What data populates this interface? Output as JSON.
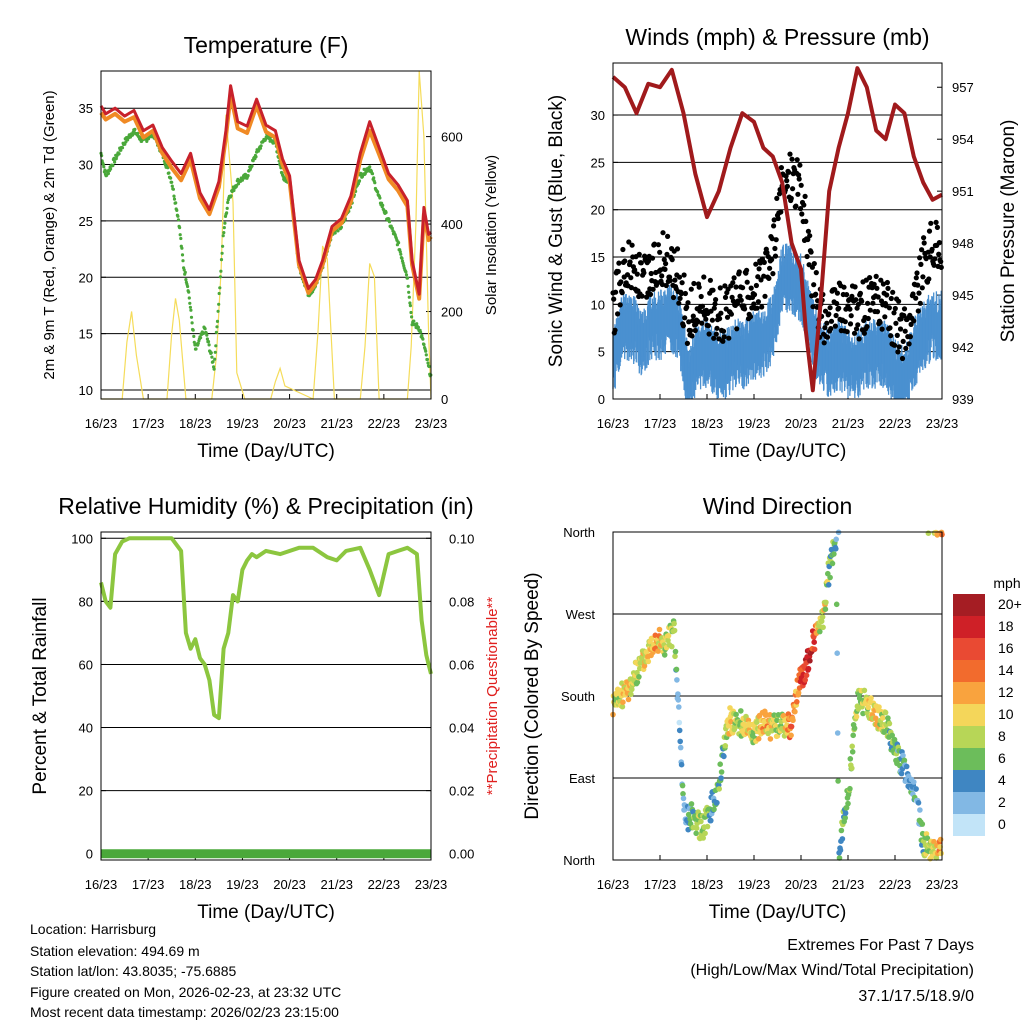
{
  "chart_data": [
    {
      "type": "line",
      "title": "Temperature (F)",
      "xlabel": "Time (Day/UTC)",
      "ylabel": "2m & 9m T (Red, Orange) & 2m Td (Green)",
      "y2label": "Solar Insolation (Yellow)",
      "x_ticks": [
        "16/23",
        "17/23",
        "18/23",
        "19/23",
        "20/23",
        "21/23",
        "22/23",
        "23/23"
      ],
      "ylim": [
        9.2,
        38.3
      ],
      "y_ticks": [
        10,
        15,
        20,
        25,
        30,
        35
      ],
      "y2lim": [
        0,
        750
      ],
      "y2_ticks": [
        0,
        200,
        400,
        600
      ],
      "x_range_days": [
        0,
        7
      ],
      "series": [
        {
          "name": "2m T",
          "color": "#c8212b",
          "x": [
            0,
            0.1,
            0.3,
            0.5,
            0.7,
            0.9,
            1.1,
            1.3,
            1.5,
            1.7,
            1.9,
            2.1,
            2.3,
            2.5,
            2.65,
            2.75,
            2.9,
            3.1,
            3.3,
            3.5,
            3.7,
            3.85,
            4.0,
            4.2,
            4.4,
            4.55,
            4.7,
            4.9,
            5.1,
            5.3,
            5.5,
            5.7,
            5.9,
            6.1,
            6.3,
            6.5,
            6.6,
            6.75,
            6.85,
            6.95,
            7.0
          ],
          "values": [
            35.2,
            34.5,
            35.0,
            34.3,
            34.8,
            33.0,
            33.5,
            31.5,
            30.3,
            29.2,
            31.0,
            27.5,
            26.0,
            28.5,
            33.0,
            37.0,
            33.8,
            33.4,
            35.8,
            33.5,
            33.0,
            30.5,
            29.0,
            21.5,
            19.0,
            19.8,
            21.5,
            24.5,
            25.2,
            27.2,
            31.0,
            33.8,
            31.5,
            29.2,
            28.2,
            26.8,
            21.5,
            18.5,
            26.2,
            23.8,
            24.0
          ]
        },
        {
          "name": "9m T",
          "color": "#f08a24",
          "x": [
            0,
            0.1,
            0.3,
            0.5,
            0.7,
            0.9,
            1.1,
            1.3,
            1.5,
            1.7,
            1.9,
            2.1,
            2.3,
            2.5,
            2.65,
            2.75,
            2.9,
            3.1,
            3.3,
            3.5,
            3.7,
            3.85,
            4.0,
            4.2,
            4.4,
            4.55,
            4.7,
            4.9,
            5.1,
            5.3,
            5.5,
            5.7,
            5.9,
            6.1,
            6.3,
            6.5,
            6.6,
            6.75,
            6.85,
            6.95,
            7.0
          ],
          "values": [
            34.6,
            34.0,
            34.5,
            33.8,
            34.2,
            32.4,
            33.0,
            31.0,
            29.7,
            28.6,
            30.4,
            27.0,
            25.6,
            28.0,
            32.4,
            36.2,
            33.2,
            32.8,
            35.2,
            32.9,
            32.4,
            30.0,
            28.5,
            21.1,
            18.6,
            19.4,
            21.1,
            24.1,
            24.8,
            26.7,
            30.4,
            33.0,
            30.9,
            28.7,
            27.7,
            26.3,
            21.1,
            18.1,
            25.6,
            23.3,
            23.6
          ]
        },
        {
          "name": "2m Td",
          "color": "#4aa83a",
          "x": [
            0,
            0.1,
            0.3,
            0.5,
            0.7,
            0.9,
            1.1,
            1.3,
            1.5,
            1.65,
            1.75,
            1.85,
            2.0,
            2.2,
            2.4,
            2.5,
            2.6,
            2.7,
            2.9,
            3.1,
            3.3,
            3.5,
            3.7,
            3.85,
            4.0,
            4.2,
            4.4,
            4.55,
            4.7,
            4.9,
            5.1,
            5.3,
            5.5,
            5.7,
            5.9,
            6.1,
            6.3,
            6.5,
            6.6,
            6.75,
            6.85,
            6.95,
            7.0
          ],
          "values": [
            31.0,
            29.0,
            30.5,
            32.0,
            33.0,
            32.0,
            32.8,
            31.0,
            28.5,
            25.0,
            21.0,
            19.0,
            13.5,
            15.5,
            12.0,
            18.0,
            24.0,
            27.0,
            28.5,
            29.0,
            31.0,
            32.5,
            32.0,
            29.0,
            28.5,
            21.0,
            18.5,
            19.2,
            21.0,
            24.0,
            24.5,
            26.5,
            29.0,
            29.8,
            27.0,
            25.0,
            23.0,
            20.0,
            16.0,
            15.5,
            14.0,
            12.0,
            11.2
          ]
        },
        {
          "name": "Solar Insolation",
          "color": "#f5dc5a",
          "axis": "y2",
          "x": [
            0,
            0.45,
            0.55,
            0.65,
            0.75,
            0.9,
            1.4,
            1.5,
            1.58,
            1.66,
            1.8,
            2.35,
            2.45,
            2.55,
            2.65,
            2.8,
            2.88,
            3.05,
            3.6,
            3.7,
            3.8,
            3.9,
            4.5,
            4.6,
            4.7,
            4.8,
            4.95,
            5.5,
            5.6,
            5.7,
            5.8,
            5.9,
            6.5,
            6.58,
            6.68,
            6.75,
            6.85,
            6.95,
            7.0
          ],
          "values": [
            0,
            0,
            130,
            200,
            100,
            0,
            0,
            150,
            230,
            180,
            0,
            0,
            100,
            300,
            650,
            450,
            60,
            0,
            0,
            40,
            70,
            30,
            0,
            150,
            350,
            320,
            0,
            0,
            120,
            310,
            280,
            0,
            0,
            120,
            400,
            750,
            600,
            150,
            0
          ]
        }
      ]
    },
    {
      "type": "scatter",
      "title": "Winds (mph) & Pressure (mb)",
      "xlabel": "Time (Day/UTC)",
      "ylabel": "Sonic Wind & Gust (Blue, Black)",
      "y2label": "Station Pressure (Maroon)",
      "x_ticks": [
        "16/23",
        "17/23",
        "18/23",
        "19/23",
        "20/23",
        "21/23",
        "22/23",
        "23/23"
      ],
      "ylim": [
        0,
        35.5
      ],
      "y_ticks": [
        0,
        5,
        10,
        15,
        20,
        25,
        30
      ],
      "y2lim": [
        939,
        958.4
      ],
      "y2_ticks": [
        939,
        942,
        945,
        948,
        951,
        954,
        957
      ],
      "x_range_days": [
        0,
        7
      ],
      "series": [
        {
          "name": "Sonic Wind",
          "color": "#4a90d0",
          "x": [
            0,
            0.2,
            0.4,
            0.6,
            0.8,
            1.0,
            1.2,
            1.4,
            1.6,
            1.8,
            2.0,
            2.2,
            2.4,
            2.6,
            2.8,
            3.0,
            3.2,
            3.4,
            3.6,
            3.8,
            4.0,
            4.2,
            4.4,
            4.6,
            4.8,
            5.0,
            5.2,
            5.4,
            5.6,
            5.8,
            6.0,
            6.2,
            6.4,
            6.6,
            6.8,
            7.0
          ],
          "values": [
            5,
            9,
            9,
            7,
            9,
            9,
            10,
            9,
            3,
            6,
            6,
            5,
            5,
            6,
            6,
            7,
            7,
            9,
            14,
            14,
            13,
            9,
            6,
            5,
            6,
            5,
            5,
            6,
            6,
            6,
            4,
            3,
            6,
            8,
            9,
            9
          ]
        },
        {
          "name": "Gust",
          "color": "#000000",
          "x": [
            0,
            0.2,
            0.4,
            0.6,
            0.8,
            1.0,
            1.2,
            1.4,
            1.6,
            1.8,
            2.0,
            2.2,
            2.4,
            2.6,
            2.8,
            3.0,
            3.2,
            3.4,
            3.6,
            3.8,
            4.0,
            4.2,
            4.4,
            4.6,
            4.8,
            5.0,
            5.2,
            5.4,
            5.6,
            5.8,
            6.0,
            6.2,
            6.4,
            6.6,
            6.8,
            7.0
          ],
          "values": [
            9,
            14,
            14,
            12,
            13,
            15,
            14,
            13,
            8,
            10,
            10,
            9,
            9,
            10,
            11,
            12,
            12,
            16,
            22,
            24,
            22,
            14,
            9,
            8,
            10,
            9,
            9,
            10,
            10,
            10,
            8,
            7,
            10,
            14,
            16,
            16
          ]
        },
        {
          "name": "Station Pressure",
          "color": "#a01a1c",
          "axis": "y2",
          "x": [
            0,
            0.25,
            0.5,
            0.75,
            1.0,
            1.25,
            1.5,
            1.75,
            2.0,
            2.25,
            2.5,
            2.75,
            3.0,
            3.2,
            3.4,
            3.6,
            3.8,
            4.0,
            4.1,
            4.25,
            4.4,
            4.6,
            4.8,
            5.0,
            5.2,
            5.4,
            5.6,
            5.8,
            6.0,
            6.2,
            6.4,
            6.6,
            6.8,
            7.0
          ],
          "values": [
            957.6,
            957.0,
            955.5,
            957.2,
            957.0,
            958.0,
            955.5,
            952.0,
            949.5,
            951.0,
            953.5,
            955.5,
            955.0,
            953.5,
            953.0,
            951.5,
            948.0,
            946.5,
            943.0,
            939.5,
            944.0,
            951.0,
            953.5,
            955.5,
            958.1,
            957.0,
            954.5,
            954.0,
            956.0,
            955.5,
            953.0,
            951.5,
            950.5,
            950.8
          ]
        }
      ]
    },
    {
      "type": "line",
      "title": "Relative Humidity (%) & Precipitation (in)",
      "xlabel": "Time (Day/UTC)",
      "ylabel": "Percent & Total Rainfall",
      "y2label": "**Precipitation Questionable**",
      "x_ticks": [
        "16/23",
        "17/23",
        "18/23",
        "19/23",
        "20/23",
        "21/23",
        "22/23",
        "23/23"
      ],
      "ylim": [
        -2,
        102
      ],
      "y_ticks": [
        0,
        20,
        40,
        60,
        80,
        100
      ],
      "y2lim": [
        0,
        0.1
      ],
      "y2_ticks": [
        "0.00",
        "0.02",
        "0.04",
        "0.06",
        "0.08",
        "0.10"
      ],
      "x_range_days": [
        0,
        7
      ],
      "series": [
        {
          "name": "Relative Humidity",
          "color": "#8cc63f",
          "x": [
            0,
            0.1,
            0.2,
            0.3,
            0.45,
            0.6,
            0.8,
            1.0,
            1.2,
            1.5,
            1.7,
            1.8,
            1.9,
            2.0,
            2.1,
            2.2,
            2.3,
            2.4,
            2.5,
            2.6,
            2.7,
            2.8,
            2.9,
            3.0,
            3.1,
            3.2,
            3.3,
            3.5,
            3.8,
            4.2,
            4.5,
            4.8,
            5.0,
            5.2,
            5.5,
            5.7,
            5.9,
            6.1,
            6.3,
            6.5,
            6.7,
            6.8,
            6.9,
            6.95,
            7.0
          ],
          "values": [
            86,
            80,
            78,
            95,
            99,
            100,
            100,
            100,
            100,
            100,
            96,
            70,
            65,
            68,
            62,
            60,
            55,
            44,
            43,
            65,
            70,
            82,
            80,
            90,
            93,
            95,
            94,
            96,
            95,
            97,
            97,
            94,
            93,
            96,
            97,
            90,
            82,
            95,
            96,
            97,
            95,
            74,
            63,
            60,
            57
          ]
        },
        {
          "name": "Total Precipitation",
          "color": "#4aa83a",
          "axis": "y2",
          "x": [
            0,
            7
          ],
          "values": [
            0,
            0
          ]
        }
      ]
    },
    {
      "type": "scatter",
      "title": "Wind Direction",
      "xlabel": "Time (Day/UTC)",
      "ylabel": "Direction (Colored By Speed)",
      "x_ticks": [
        "16/23",
        "17/23",
        "18/23",
        "19/23",
        "20/23",
        "21/23",
        "22/23",
        "23/23"
      ],
      "y_ticks": [
        "North",
        "East",
        "South",
        "West",
        "North"
      ],
      "ylim": [
        0,
        360
      ],
      "x_range_days": [
        0,
        7
      ],
      "colorbar": {
        "title": "mph",
        "labels": [
          "20+",
          "18",
          "16",
          "14",
          "12",
          "10",
          "8",
          "6",
          "4",
          "2",
          "0"
        ],
        "colors": [
          "#a51d23",
          "#cf2027",
          "#e94a33",
          "#f26b2d",
          "#f9a33e",
          "#f4d65a",
          "#b7d657",
          "#6cbd5b",
          "#3f86c2",
          "#82b8e4",
          "#c2e4f8"
        ]
      },
      "series": [
        {
          "name": "Direction",
          "x": [
            0.0,
            0.1,
            0.2,
            0.3,
            0.45,
            0.6,
            0.75,
            0.9,
            1.0,
            1.1,
            1.2,
            1.3,
            1.4,
            1.5,
            1.6,
            1.7,
            1.8,
            1.9,
            2.0,
            2.1,
            2.25,
            2.4,
            2.5,
            2.6,
            2.75,
            2.9,
            3.0,
            3.2,
            3.4,
            3.6,
            3.8,
            3.9,
            4.0,
            4.1,
            4.2,
            4.3,
            4.4,
            4.5,
            4.55,
            4.6,
            4.7,
            4.75,
            4.8,
            4.9,
            5.0,
            5.2,
            5.4,
            5.6,
            5.8,
            6.0,
            6.2,
            6.4,
            6.5,
            6.6,
            6.8,
            6.9,
            7.0
          ],
          "values": [
            170,
            175,
            182,
            185,
            200,
            215,
            230,
            245,
            240,
            235,
            245,
            250,
            160,
            60,
            45,
            50,
            40,
            35,
            45,
            60,
            80,
            140,
            155,
            150,
            150,
            145,
            140,
            150,
            145,
            150,
            145,
            180,
            200,
            210,
            230,
            245,
            255,
            270,
            300,
            320,
            340,
            355,
            10,
            40,
            70,
            180,
            170,
            160,
            150,
            120,
            100,
            80,
            50,
            20,
            5,
            10,
            8
          ],
          "speeds": [
            10,
            8,
            10,
            11,
            8,
            9,
            10,
            12,
            11,
            8,
            9,
            7,
            2,
            3,
            4,
            6,
            8,
            8,
            7,
            4,
            6,
            7,
            12,
            8,
            8,
            10,
            8,
            12,
            9,
            8,
            14,
            12,
            16,
            18,
            18,
            15,
            8,
            9,
            8,
            6,
            6,
            4,
            4,
            5,
            6,
            8,
            9,
            10,
            8,
            6,
            4,
            4,
            3,
            6,
            10,
            11,
            12
          ]
        }
      ]
    }
  ],
  "footer": {
    "location": "Location: Harrisburg",
    "elevation": "Station elevation: 494.69 m",
    "latlon": "Station lat/lon: 43.8035; -75.6885",
    "created": "Figure created on Mon, 2026-02-23, at 23:32 UTC",
    "recent": "Most recent data timestamp: 2026/02/23 23:15:00",
    "extremes_title": "Extremes For Past 7 Days",
    "extremes_desc": "(High/Low/Max Wind/Total Precipitation)",
    "extremes_values": "37.1/17.5/18.9/0"
  }
}
